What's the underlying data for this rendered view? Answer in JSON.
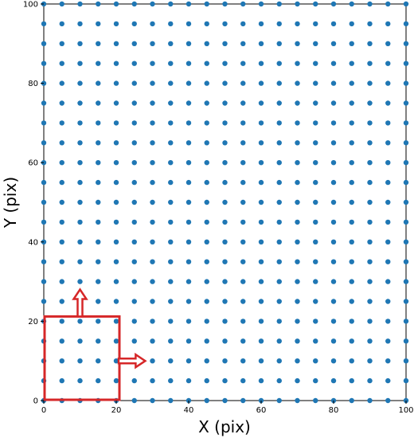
{
  "chart_data": {
    "type": "scatter",
    "title": "",
    "xlabel": "X (pix)",
    "ylabel": "Y (pix)",
    "xlim": [
      0,
      100
    ],
    "ylim": [
      0,
      100
    ],
    "xticks": [
      0,
      20,
      40,
      60,
      80,
      100
    ],
    "yticks": [
      0,
      20,
      40,
      60,
      80,
      100
    ],
    "grid": false,
    "series": [
      {
        "grid_points": {
          "x_start": 0,
          "x_end": 100,
          "x_step": 5,
          "y_start": 0,
          "y_end": 100,
          "y_step": 5
        },
        "color": "#1f77b4"
      }
    ],
    "annotations": [
      {
        "type": "box",
        "x_range": [
          0,
          20
        ],
        "y_range": [
          0,
          20
        ],
        "color": "#d62728"
      },
      {
        "type": "arrow",
        "direction": "right",
        "from": [
          20,
          10
        ],
        "to": [
          28,
          10
        ],
        "color": "#d62728"
      },
      {
        "type": "arrow",
        "direction": "up",
        "from": [
          10,
          20
        ],
        "to": [
          10,
          28
        ],
        "color": "#d62728"
      }
    ]
  }
}
